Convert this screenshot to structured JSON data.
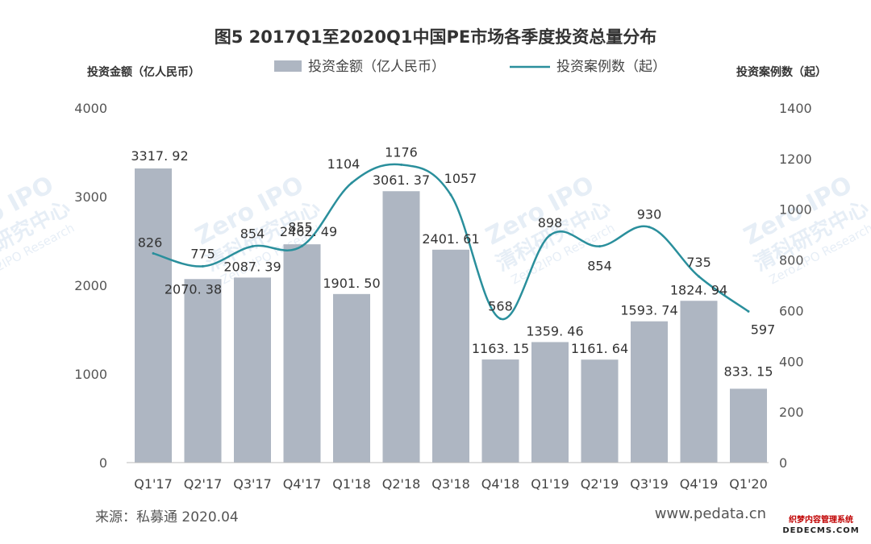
{
  "chart_data": {
    "type": "bar+line",
    "title": "图5 2017Q1至2020Q1中国PE市场各季度投资总量分布",
    "ylabel_left": "投资金额（亿人民币）",
    "ylabel_right": "投资案例数（起）",
    "legend": {
      "position": "top-center"
    },
    "categories": [
      "Q1'17",
      "Q2'17",
      "Q3'17",
      "Q4'17",
      "Q1'18",
      "Q2'18",
      "Q3'18",
      "Q4'18",
      "Q1'19",
      "Q2'19",
      "Q3'19",
      "Q4'19",
      "Q1'20"
    ],
    "series": [
      {
        "name": "投资金额（亿人民币）",
        "type": "bar",
        "axis": "left",
        "color": "#aeb6c2",
        "values": [
          3317.92,
          2070.38,
          2087.39,
          2462.49,
          1901.5,
          3061.37,
          2401.61,
          1163.15,
          1359.46,
          1161.64,
          1593.74,
          1824.94,
          833.15
        ],
        "labels": [
          "3317. 92",
          "2070. 38",
          "2087. 39",
          "2462. 49",
          "1901. 50",
          "3061. 37",
          "2401. 61",
          "1163. 15",
          "1359. 46",
          "1161. 64",
          "1593. 74",
          "1824. 94",
          "833. 15"
        ]
      },
      {
        "name": "投资案例数（起）",
        "type": "line",
        "smooth": true,
        "axis": "right",
        "color": "#2a8f9c",
        "values": [
          826,
          775,
          854,
          855,
          1104,
          1176,
          1057,
          568,
          898,
          854,
          930,
          735,
          597
        ]
      }
    ],
    "ylim_left": [
      0,
      4000
    ],
    "yticks_left": [
      0,
      1000,
      2000,
      3000,
      4000
    ],
    "ylim_right": [
      0,
      1400
    ],
    "yticks_right": [
      0,
      200,
      400,
      600,
      800,
      1000,
      1200,
      1400
    ],
    "grid": false
  },
  "footer": {
    "source": "来源：私募通 2020.04",
    "website": "www.pedata.cn"
  },
  "stamp": {
    "line1": "织梦内容管理系统",
    "line2": "DEDECMS.COM"
  },
  "watermark": {
    "brand": "Zero IPO",
    "name": "清科研究中心",
    "sub": "Zero2IPO Research"
  }
}
